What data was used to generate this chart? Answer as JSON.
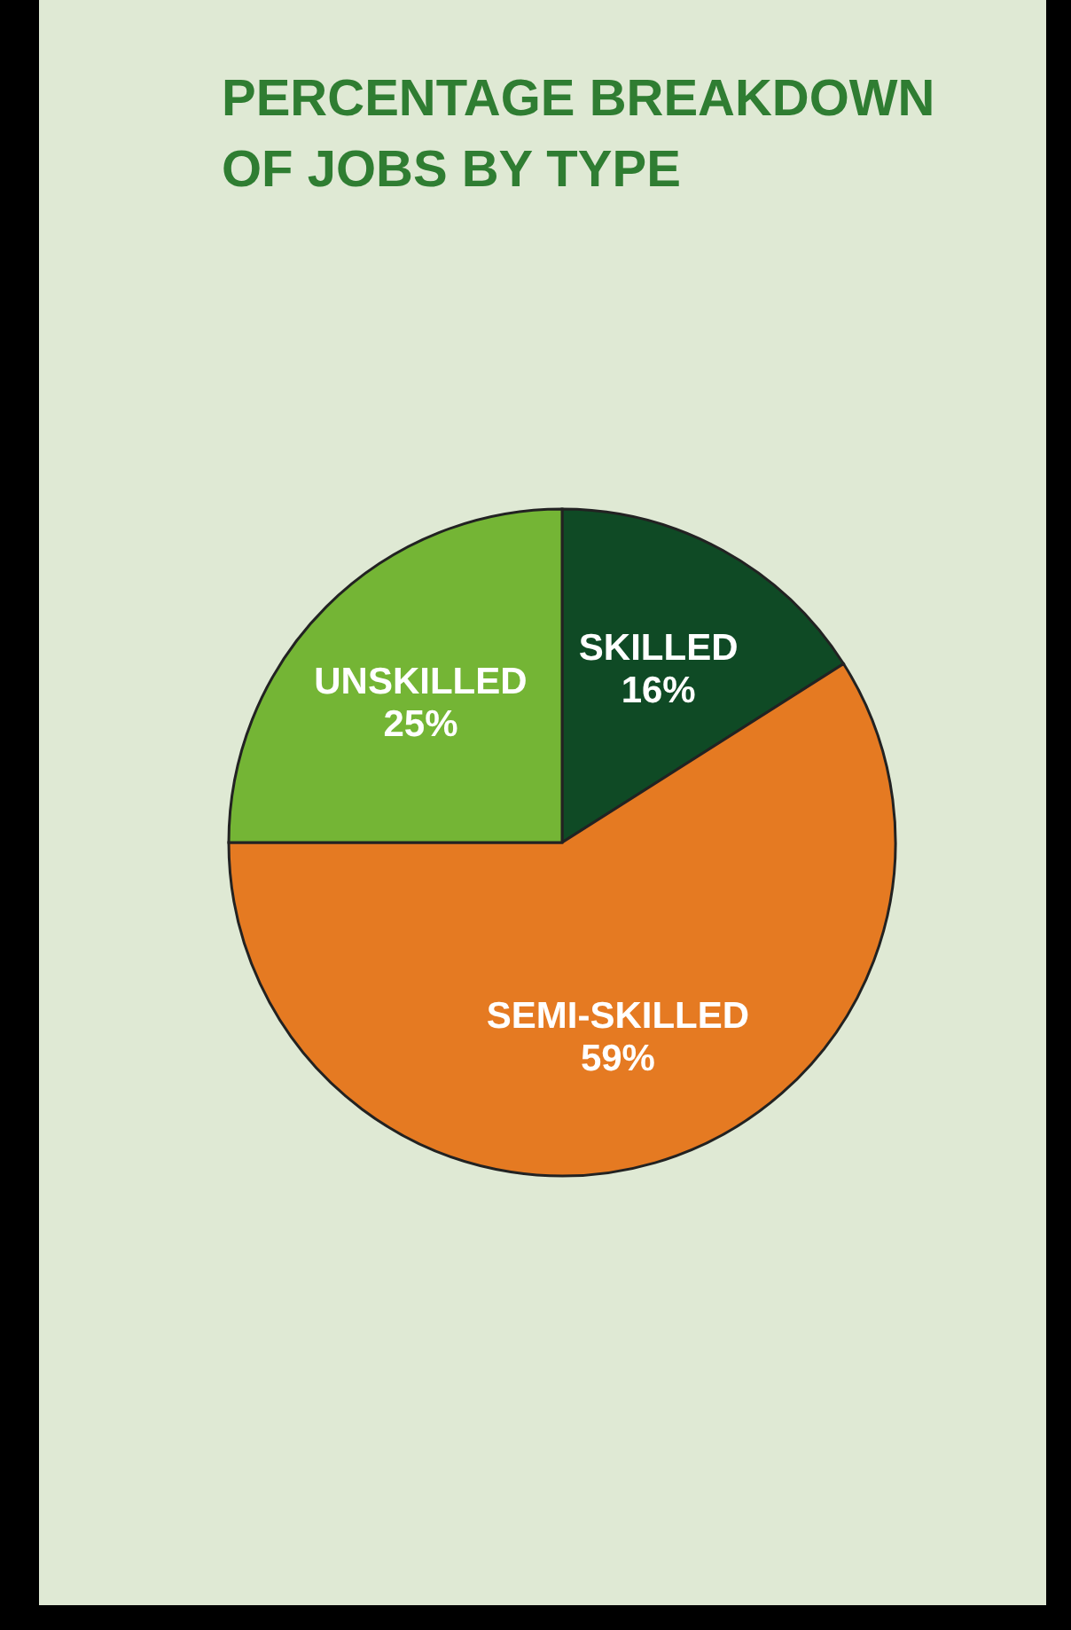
{
  "chart_data": {
    "type": "pie",
    "title": "PERCENTAGE BREAKDOWN OF JOBS BY TYPE",
    "categories": [
      "SKILLED",
      "SEMI-SKILLED",
      "UNSKILLED"
    ],
    "values": [
      16,
      59,
      25
    ],
    "value_labels": [
      "16%",
      "59%",
      "25%"
    ],
    "colors": [
      "#0f4a25",
      "#e57a22",
      "#74b535"
    ],
    "legend": false
  }
}
